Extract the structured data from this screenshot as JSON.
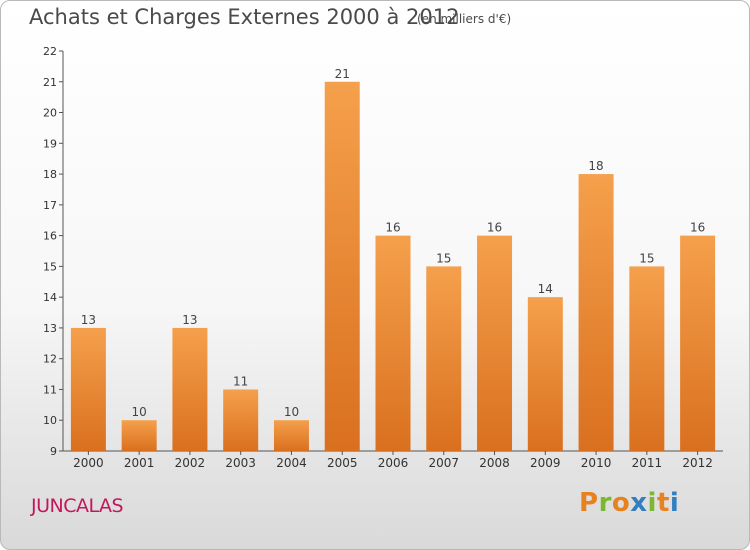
{
  "header": {
    "title": "Achats et Charges Externes 2000 à 2012",
    "unit": "(en milliers d'€)"
  },
  "footer": {
    "commune": "JUNCALAS",
    "logo_letters": [
      "P",
      "r",
      "o",
      "x",
      "i",
      "t",
      "i"
    ],
    "logo_colors": [
      "#e8821e",
      "#7cb82f",
      "#e8821e",
      "#2f7fc1",
      "#7cb82f",
      "#e8821e",
      "#2f7fc1"
    ]
  },
  "colors": {
    "bar_light": "#f5a04c",
    "bar_dark": "#d9701f",
    "axis": "#555555"
  },
  "chart_data": {
    "type": "bar",
    "title": "Achats et Charges Externes 2000 à 2012",
    "subtitle": "(en milliers d'€)",
    "xlabel": "",
    "ylabel": "",
    "categories": [
      "2000",
      "2001",
      "2002",
      "2003",
      "2004",
      "2005",
      "2006",
      "2007",
      "2008",
      "2009",
      "2010",
      "2011",
      "2012"
    ],
    "values": [
      13,
      10,
      13,
      11,
      10,
      21,
      16,
      15,
      16,
      14,
      18,
      15,
      16
    ],
    "ylim": [
      9,
      22
    ],
    "yticks": [
      9,
      10,
      11,
      12,
      13,
      14,
      15,
      16,
      17,
      18,
      19,
      20,
      21,
      22
    ],
    "grid": false,
    "legend": "none"
  }
}
